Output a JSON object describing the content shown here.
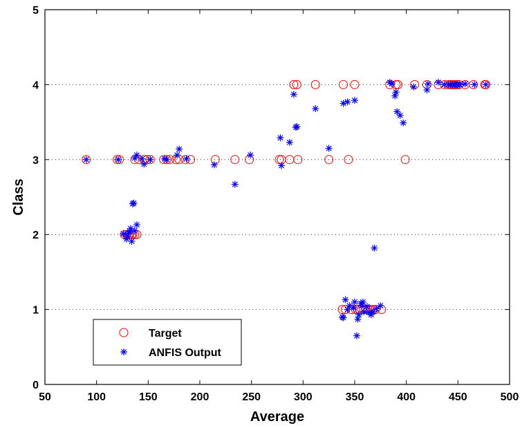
{
  "chart_data": {
    "type": "scatter",
    "xlabel": "Average",
    "ylabel": "Class",
    "xlim": [
      50,
      500
    ],
    "ylim": [
      0,
      5
    ],
    "xticks": [
      50,
      100,
      150,
      200,
      250,
      300,
      350,
      400,
      450,
      500
    ],
    "yticks": [
      0,
      1,
      2,
      3,
      4,
      5
    ],
    "grid": "horizontal dotted at y = 1, 2, 3, 4",
    "legend_position": "bottom-left",
    "series": [
      {
        "name": "Target",
        "marker": "circle",
        "color": "#ff0000",
        "points": [
          [
            90,
            3
          ],
          [
            120,
            3
          ],
          [
            122,
            3
          ],
          [
            137,
            3
          ],
          [
            141,
            3
          ],
          [
            146,
            3
          ],
          [
            149,
            3
          ],
          [
            152,
            3
          ],
          [
            165,
            3
          ],
          [
            168,
            3
          ],
          [
            171,
            3
          ],
          [
            177,
            3
          ],
          [
            180,
            3
          ],
          [
            186,
            3
          ],
          [
            191,
            3
          ],
          [
            215,
            3
          ],
          [
            234,
            3
          ],
          [
            248,
            3
          ],
          [
            277,
            3
          ],
          [
            279,
            3
          ],
          [
            287,
            3
          ],
          [
            295,
            3
          ],
          [
            325,
            3
          ],
          [
            344,
            3
          ],
          [
            399,
            3
          ],
          [
            127,
            2
          ],
          [
            129,
            2
          ],
          [
            131,
            2
          ],
          [
            132,
            2
          ],
          [
            134,
            2
          ],
          [
            135,
            2
          ],
          [
            137,
            2
          ],
          [
            139,
            2
          ],
          [
            291,
            4
          ],
          [
            294,
            4
          ],
          [
            312,
            4
          ],
          [
            339,
            4
          ],
          [
            350,
            4
          ],
          [
            384,
            4
          ],
          [
            390,
            4
          ],
          [
            392,
            4
          ],
          [
            408,
            4
          ],
          [
            420,
            4
          ],
          [
            431,
            4
          ],
          [
            437,
            4
          ],
          [
            441,
            4
          ],
          [
            443,
            4
          ],
          [
            445,
            4
          ],
          [
            447,
            4
          ],
          [
            449,
            4
          ],
          [
            451,
            4
          ],
          [
            457,
            4
          ],
          [
            465,
            4
          ],
          [
            476,
            4
          ],
          [
            477,
            4
          ],
          [
            338,
            1
          ],
          [
            341,
            1
          ],
          [
            347,
            1
          ],
          [
            351,
            1
          ],
          [
            353,
            1
          ],
          [
            355,
            1
          ],
          [
            357,
            1
          ],
          [
            359,
            1
          ],
          [
            361,
            1
          ],
          [
            363,
            1
          ],
          [
            365,
            1
          ],
          [
            368,
            1
          ],
          [
            370,
            1
          ],
          [
            376,
            1
          ]
        ]
      },
      {
        "name": "ANFIS Output",
        "marker": "asterisk",
        "color": "#0000ff",
        "points": [
          [
            90,
            3
          ],
          [
            121,
            3
          ],
          [
            137,
            3.02
          ],
          [
            139,
            3.06
          ],
          [
            144,
            3.01
          ],
          [
            146,
            2.94
          ],
          [
            152,
            3
          ],
          [
            166,
            3.01
          ],
          [
            168,
            3
          ],
          [
            178,
            3.06
          ],
          [
            180,
            3.14
          ],
          [
            187,
            3.01
          ],
          [
            214,
            2.93
          ],
          [
            234,
            2.67
          ],
          [
            249,
            3.06
          ],
          [
            278,
            3.29
          ],
          [
            279,
            2.92
          ],
          [
            287,
            3.23
          ],
          [
            291,
            3.87
          ],
          [
            293,
            3.43
          ],
          [
            294,
            3.44
          ],
          [
            312,
            3.68
          ],
          [
            325,
            3.15
          ],
          [
            339,
            3.75
          ],
          [
            343,
            3.77
          ],
          [
            350,
            3.79
          ],
          [
            126,
            2.01
          ],
          [
            129,
            1.94
          ],
          [
            130,
            1.98
          ],
          [
            131,
            2.02
          ],
          [
            132,
            2.04
          ],
          [
            133,
            2.08
          ],
          [
            134,
            1.91
          ],
          [
            135,
            2.41
          ],
          [
            136,
            2.42
          ],
          [
            137,
            2.05
          ],
          [
            139,
            2.13
          ],
          [
            384,
            4.03
          ],
          [
            386,
            4.01
          ],
          [
            389,
            3.85
          ],
          [
            390,
            3.9
          ],
          [
            391,
            3.64
          ],
          [
            394,
            3.59
          ],
          [
            397,
            3.49
          ],
          [
            407,
            3.97
          ],
          [
            420,
            3.93
          ],
          [
            421,
            4.01
          ],
          [
            431,
            4.03
          ],
          [
            437,
            4
          ],
          [
            441,
            4
          ],
          [
            443,
            4
          ],
          [
            445,
            4
          ],
          [
            447,
            4
          ],
          [
            449,
            4
          ],
          [
            450,
            4
          ],
          [
            452,
            4
          ],
          [
            457,
            4.01
          ],
          [
            466,
            4
          ],
          [
            477,
            4
          ],
          [
            338,
            0.9
          ],
          [
            339,
            0.89
          ],
          [
            341,
            1.13
          ],
          [
            343,
            1
          ],
          [
            345,
            1.05
          ],
          [
            349,
            1.02
          ],
          [
            350,
            1.1
          ],
          [
            352,
            0.65
          ],
          [
            353,
            0.87
          ],
          [
            354,
            0.93
          ],
          [
            356,
            1.08
          ],
          [
            357,
            1.05
          ],
          [
            358,
            1.1
          ],
          [
            359,
            0.97
          ],
          [
            362,
            1.04
          ],
          [
            364,
            0.96
          ],
          [
            366,
            0.93
          ],
          [
            368,
            0.97
          ],
          [
            369,
            1.82
          ],
          [
            371,
            1.01
          ],
          [
            375,
            1.05
          ]
        ]
      }
    ]
  },
  "legend": {
    "target_label": "Target",
    "anfis_label": "ANFIS Output"
  }
}
